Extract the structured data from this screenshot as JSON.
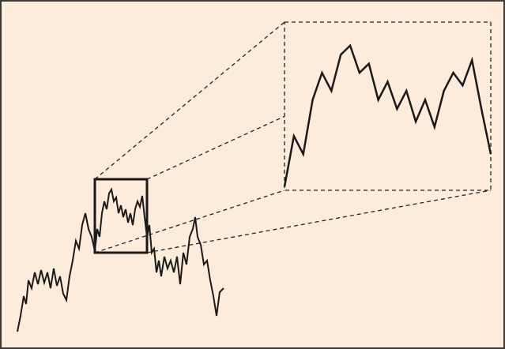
{
  "chart_data": {
    "type": "line",
    "x": [
      22,
      26,
      30,
      33,
      36,
      40,
      44,
      48,
      52,
      56,
      60,
      64,
      68,
      72,
      76,
      80,
      84,
      88,
      92,
      96,
      100,
      104,
      108,
      112,
      116,
      120,
      123,
      126,
      129,
      132,
      135,
      138,
      141,
      144,
      147,
      150,
      153,
      156,
      159,
      162,
      165,
      168,
      171,
      174,
      177,
      180,
      183,
      186,
      189,
      192,
      195,
      198,
      201,
      204,
      208,
      212,
      216,
      220,
      224,
      228,
      232,
      236,
      240,
      244,
      247,
      250,
      254,
      258,
      262,
      266,
      270,
      274,
      278,
      283
    ],
    "values": [
      22,
      42,
      67,
      57,
      87,
      77,
      97,
      82,
      100,
      84,
      97,
      77,
      102,
      80,
      92,
      70,
      62,
      92,
      112,
      137,
      127,
      157,
      172,
      152,
      142,
      124,
      152,
      142,
      172,
      187,
      177,
      197,
      202,
      187,
      192,
      172,
      182,
      167,
      177,
      160,
      172,
      157,
      177,
      187,
      180,
      194,
      167,
      142,
      157,
      122,
      127,
      97,
      112,
      92,
      117,
      102,
      112,
      97,
      117,
      82,
      122,
      107,
      142,
      152,
      167,
      142,
      132,
      107,
      112,
      87,
      67,
      42,
      72,
      77
    ],
    "color": "#1a1a1a",
    "xlim": [
      10,
      639
    ],
    "ylim": [
      0,
      440
    ],
    "zoom": {
      "xlim": [
        120,
        186
      ],
      "ylim": [
        122,
        215
      ]
    }
  }
}
